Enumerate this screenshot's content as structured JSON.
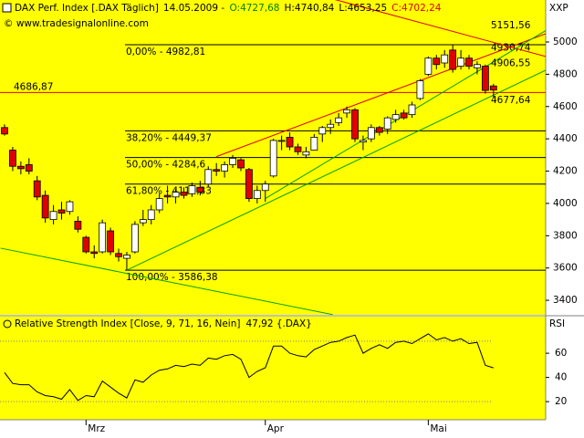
{
  "chart_data": {
    "type": "candlestick",
    "header": [
      "DAX Perf. Index [.DAX  Täglich]",
      "14.05.2009 -",
      "O:4727,68",
      "H:4740,84",
      "L:4653,25",
      "C:4702,24"
    ],
    "header_colors": [
      "#000000",
      "#000000",
      "#008000",
      "#000000",
      "#000000",
      "#e00000"
    ],
    "copyright": "© www.tradesignalonline.com",
    "y_axis_label": "XXP",
    "categories": [
      null,
      null,
      null,
      null,
      null,
      null,
      null,
      null,
      null,
      null,
      "Mrz",
      null,
      null,
      null,
      null,
      null,
      null,
      null,
      null,
      null,
      null,
      null,
      null,
      null,
      null,
      null,
      null,
      null,
      null,
      null,
      null,
      null,
      "Apr",
      null,
      null,
      null,
      null,
      null,
      null,
      null,
      null,
      null,
      null,
      null,
      null,
      null,
      null,
      null,
      null,
      null,
      null,
      null,
      "Mai",
      null,
      null,
      null,
      null,
      null,
      null,
      null,
      null
    ],
    "open": [
      4470,
      4330,
      4230,
      4240,
      4140,
      4050,
      3900,
      3960,
      3950,
      3890,
      3790,
      3700,
      3700,
      3830,
      3690,
      3660,
      3700,
      3880,
      3900,
      3960,
      4050,
      4040,
      4070,
      4060,
      4100,
      4120,
      4210,
      4200,
      4240,
      4270,
      4210,
      4030,
      4080,
      4170,
      4390,
      4410,
      4350,
      4300,
      4330,
      4430,
      4470,
      4500,
      4560,
      4580,
      4380,
      4400,
      4470,
      4460,
      4520,
      4560,
      4550,
      4650,
      4800,
      4900,
      4870,
      4950,
      4850,
      4900,
      4840,
      4850,
      4727.68
    ],
    "high": [
      4490,
      4350,
      4260,
      4280,
      4170,
      4080,
      3990,
      4010,
      4020,
      3920,
      3800,
      3740,
      3900,
      3850,
      3720,
      3700,
      3890,
      3960,
      3990,
      4060,
      4110,
      4090,
      4100,
      4130,
      4140,
      4230,
      4250,
      4260,
      4300,
      4280,
      4220,
      4110,
      4140,
      4400,
      4420,
      4440,
      4370,
      4350,
      4430,
      4480,
      4520,
      4560,
      4600,
      4590,
      4420,
      4490,
      4480,
      4540,
      4580,
      4580,
      4630,
      4770,
      4910,
      4920,
      4950,
      4980,
      4950,
      4920,
      4880,
      4860,
      4740.84
    ],
    "low": [
      4420,
      4200,
      4180,
      4180,
      4020,
      3880,
      3870,
      3900,
      3930,
      3820,
      3690,
      3660,
      3690,
      3680,
      3640,
      3588,
      3690,
      3860,
      3870,
      3940,
      4000,
      4000,
      4030,
      4040,
      4050,
      4100,
      4170,
      4160,
      4220,
      4200,
      4010,
      4000,
      4010,
      4160,
      4330,
      4330,
      4300,
      4280,
      4330,
      4380,
      4430,
      4480,
      4530,
      4380,
      4330,
      4380,
      4420,
      4430,
      4500,
      4520,
      4530,
      4640,
      4790,
      4830,
      4840,
      4810,
      4830,
      4830,
      4800,
      4680,
      4653.25
    ],
    "close": [
      4430,
      4230,
      4215,
      4200,
      4040,
      3910,
      3950,
      3940,
      4010,
      3840,
      3700,
      3690,
      3880,
      3700,
      3670,
      3680,
      3870,
      3900,
      3960,
      4030,
      4040,
      4070,
      4050,
      4110,
      4070,
      4210,
      4200,
      4240,
      4280,
      4220,
      4030,
      4080,
      4120,
      4390,
      4390,
      4350,
      4320,
      4320,
      4410,
      4470,
      4490,
      4530,
      4580,
      4400,
      4390,
      4470,
      4440,
      4530,
      4550,
      4530,
      4610,
      4760,
      4900,
      4860,
      4920,
      4830,
      4900,
      4850,
      4860,
      4700,
      4702.24
    ],
    "up_color": "#ffffff",
    "down_color": "#e00000",
    "ylim": [
      3310,
      5260
    ],
    "yticks": [
      3400,
      3600,
      3800,
      4000,
      4200,
      4400,
      4600,
      4800,
      5000
    ],
    "hline": {
      "value": 4686.87,
      "label": "4686,87",
      "color": "#e00000"
    },
    "fib_levels": [
      {
        "value": 4982.81,
        "label": "0,00% - 4982,81"
      },
      {
        "value": 4449.37,
        "label": "38,20% - 4449,37"
      },
      {
        "value": 4284.6,
        "label": "50,00% - 4284,6"
      },
      {
        "value": 4119.83,
        "label": "61,80% - 4119,83"
      },
      {
        "value": 3586.38,
        "label": "100,00% - 3586,38"
      }
    ],
    "trendlines": [
      {
        "color": "#e00000",
        "points": [
          [
            26,
            4290
          ],
          [
            66.4,
            5051
          ]
        ],
        "end_label": {
          "value": 4930.74,
          "label": "4930,74"
        }
      },
      {
        "color": "#e00000",
        "points": [
          [
            40,
            5270
          ],
          [
            66.4,
            4910
          ]
        ],
        "end_label": {
          "value": 5151.56,
          "label": "5151,56"
        }
      },
      {
        "color": "#00a000",
        "points": [
          [
            15,
            3586.38
          ],
          [
            66.4,
            4825
          ]
        ],
        "end_label": {
          "value": 4677.64,
          "label": "4677,64"
        }
      },
      {
        "color": "#00a000",
        "points": [
          [
            32,
            4030
          ],
          [
            66.4,
            5070
          ]
        ],
        "end_label": {
          "value": 4906.55,
          "label": "4906,55"
        }
      },
      {
        "color": "#00a000",
        "points": [
          [
            -0.5,
            3723
          ],
          [
            40.3,
            3311
          ]
        ]
      }
    ],
    "indicator": {
      "title": "Relative Strength Index [Close, 9, 71, 16, Nein]",
      "value_label": "47,92 {.DAX}",
      "axis_label": "RSI",
      "color": "#000000",
      "values": [
        44,
        35,
        34,
        34,
        28,
        25,
        24,
        22,
        30,
        21,
        25,
        24,
        37,
        32,
        27,
        23,
        38,
        36,
        42,
        46,
        47,
        50,
        49,
        51,
        50,
        56,
        55,
        58,
        59,
        55,
        40,
        45,
        48,
        66,
        66,
        60,
        58,
        57,
        63,
        66,
        69,
        70,
        73,
        75,
        60,
        64,
        67,
        64,
        69,
        70,
        68,
        72,
        76,
        71,
        73,
        70,
        72,
        68,
        69,
        50,
        47.92
      ],
      "ylim": [
        5,
        88
      ],
      "yticks": [
        20,
        40,
        60
      ],
      "levels": [
        70,
        20
      ]
    }
  }
}
